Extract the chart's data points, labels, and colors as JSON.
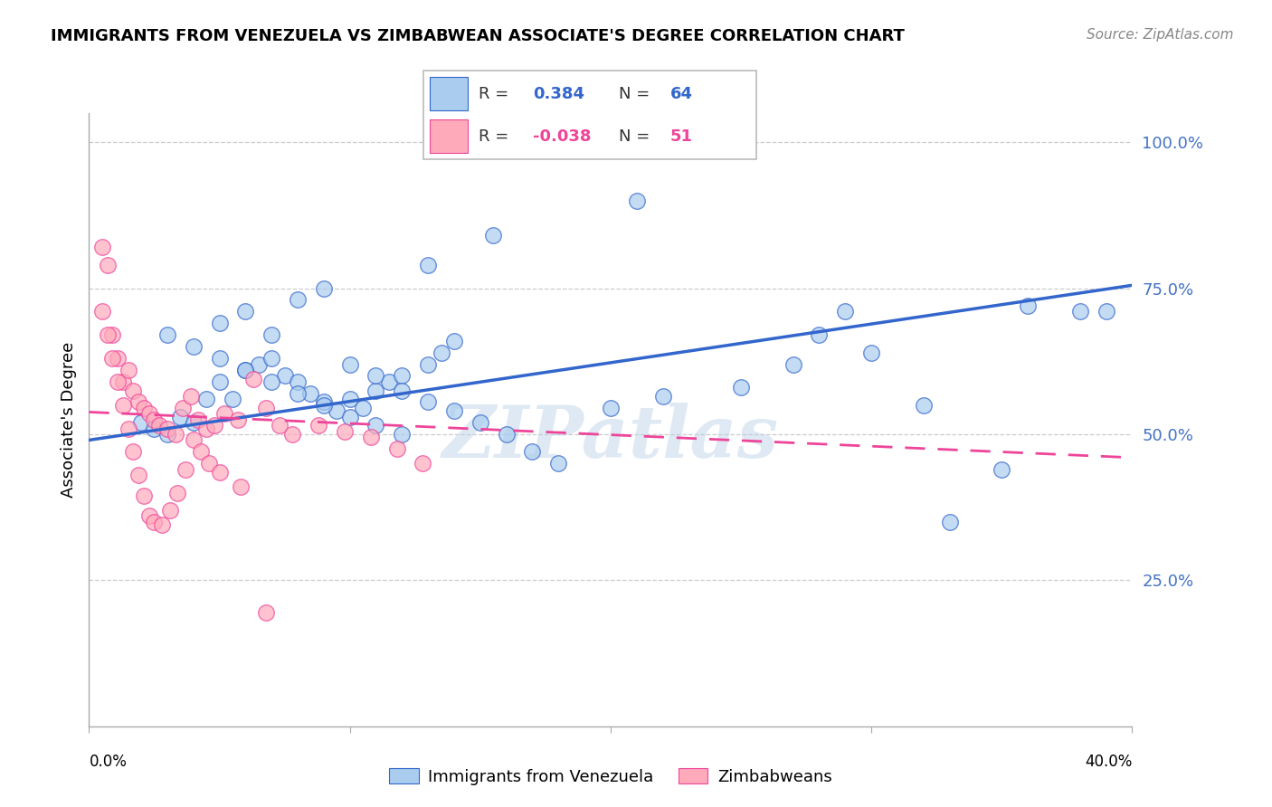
{
  "title": "IMMIGRANTS FROM VENEZUELA VS ZIMBABWEAN ASSOCIATE'S DEGREE CORRELATION CHART",
  "source": "Source: ZipAtlas.com",
  "ylabel": "Associate's Degree",
  "xlim": [
    0.0,
    0.4
  ],
  "ylim": [
    0.0,
    1.05
  ],
  "legend_blue_r": "0.384",
  "legend_blue_n": "64",
  "legend_pink_r": "-0.038",
  "legend_pink_n": "51",
  "legend_label_blue": "Immigrants from Venezuela",
  "legend_label_pink": "Zimbabweans",
  "blue_color": "#aaccee",
  "pink_color": "#ffaabb",
  "line_blue_color": "#3366cc",
  "line_pink_color": "#ee4499",
  "watermark": "ZIPatlas",
  "blue_scatter_x": [
    0.02,
    0.025,
    0.03,
    0.035,
    0.04,
    0.045,
    0.05,
    0.055,
    0.06,
    0.065,
    0.07,
    0.075,
    0.08,
    0.085,
    0.09,
    0.095,
    0.1,
    0.105,
    0.11,
    0.115,
    0.12,
    0.13,
    0.135,
    0.14,
    0.05,
    0.06,
    0.07,
    0.08,
    0.09,
    0.1,
    0.11,
    0.12,
    0.13,
    0.14,
    0.15,
    0.16,
    0.17,
    0.18,
    0.2,
    0.22,
    0.25,
    0.27,
    0.3,
    0.32,
    0.35,
    0.38,
    0.39,
    0.28,
    0.33,
    0.36,
    0.03,
    0.04,
    0.05,
    0.06,
    0.07,
    0.08,
    0.09,
    0.1,
    0.11,
    0.12,
    0.13,
    0.155,
    0.21,
    0.29
  ],
  "blue_scatter_y": [
    0.52,
    0.51,
    0.5,
    0.53,
    0.52,
    0.56,
    0.59,
    0.56,
    0.61,
    0.62,
    0.63,
    0.6,
    0.59,
    0.57,
    0.555,
    0.54,
    0.56,
    0.545,
    0.575,
    0.59,
    0.6,
    0.62,
    0.64,
    0.66,
    0.69,
    0.71,
    0.67,
    0.73,
    0.75,
    0.62,
    0.6,
    0.575,
    0.555,
    0.54,
    0.52,
    0.5,
    0.47,
    0.45,
    0.545,
    0.565,
    0.58,
    0.62,
    0.64,
    0.55,
    0.44,
    0.71,
    0.71,
    0.67,
    0.35,
    0.72,
    0.67,
    0.65,
    0.63,
    0.61,
    0.59,
    0.57,
    0.55,
    0.53,
    0.515,
    0.5,
    0.79,
    0.84,
    0.9,
    0.71
  ],
  "pink_scatter_x": [
    0.005,
    0.007,
    0.009,
    0.011,
    0.013,
    0.015,
    0.017,
    0.019,
    0.021,
    0.023,
    0.025,
    0.027,
    0.03,
    0.033,
    0.036,
    0.039,
    0.042,
    0.045,
    0.048,
    0.052,
    0.057,
    0.063,
    0.068,
    0.073,
    0.078,
    0.088,
    0.098,
    0.108,
    0.118,
    0.128,
    0.005,
    0.007,
    0.009,
    0.011,
    0.013,
    0.015,
    0.017,
    0.019,
    0.021,
    0.023,
    0.025,
    0.028,
    0.031,
    0.034,
    0.037,
    0.04,
    0.043,
    0.046,
    0.05,
    0.058,
    0.068
  ],
  "pink_scatter_y": [
    0.82,
    0.79,
    0.67,
    0.63,
    0.59,
    0.61,
    0.575,
    0.555,
    0.545,
    0.535,
    0.525,
    0.515,
    0.51,
    0.5,
    0.545,
    0.565,
    0.525,
    0.51,
    0.515,
    0.535,
    0.525,
    0.595,
    0.545,
    0.515,
    0.5,
    0.515,
    0.505,
    0.495,
    0.475,
    0.45,
    0.71,
    0.67,
    0.63,
    0.59,
    0.55,
    0.51,
    0.47,
    0.43,
    0.395,
    0.36,
    0.35,
    0.345,
    0.37,
    0.4,
    0.44,
    0.49,
    0.47,
    0.45,
    0.435,
    0.41,
    0.195
  ],
  "blue_line_x": [
    0.0,
    0.4
  ],
  "blue_line_y": [
    0.49,
    0.755
  ],
  "pink_line_x": [
    0.0,
    0.4
  ],
  "pink_line_y": [
    0.538,
    0.46
  ],
  "ytick_vals": [
    0.25,
    0.5,
    0.75,
    1.0
  ],
  "ytick_labels": [
    "25.0%",
    "50.0%",
    "75.0%",
    "100.0%"
  ],
  "xtick_minor": [
    0.1,
    0.2,
    0.3
  ],
  "axis_color": "#aaaaaa",
  "grid_color": "#cccccc",
  "tick_color": "#4472c4",
  "title_fontsize": 13,
  "source_fontsize": 11,
  "tick_fontsize": 13,
  "ylabel_fontsize": 13
}
